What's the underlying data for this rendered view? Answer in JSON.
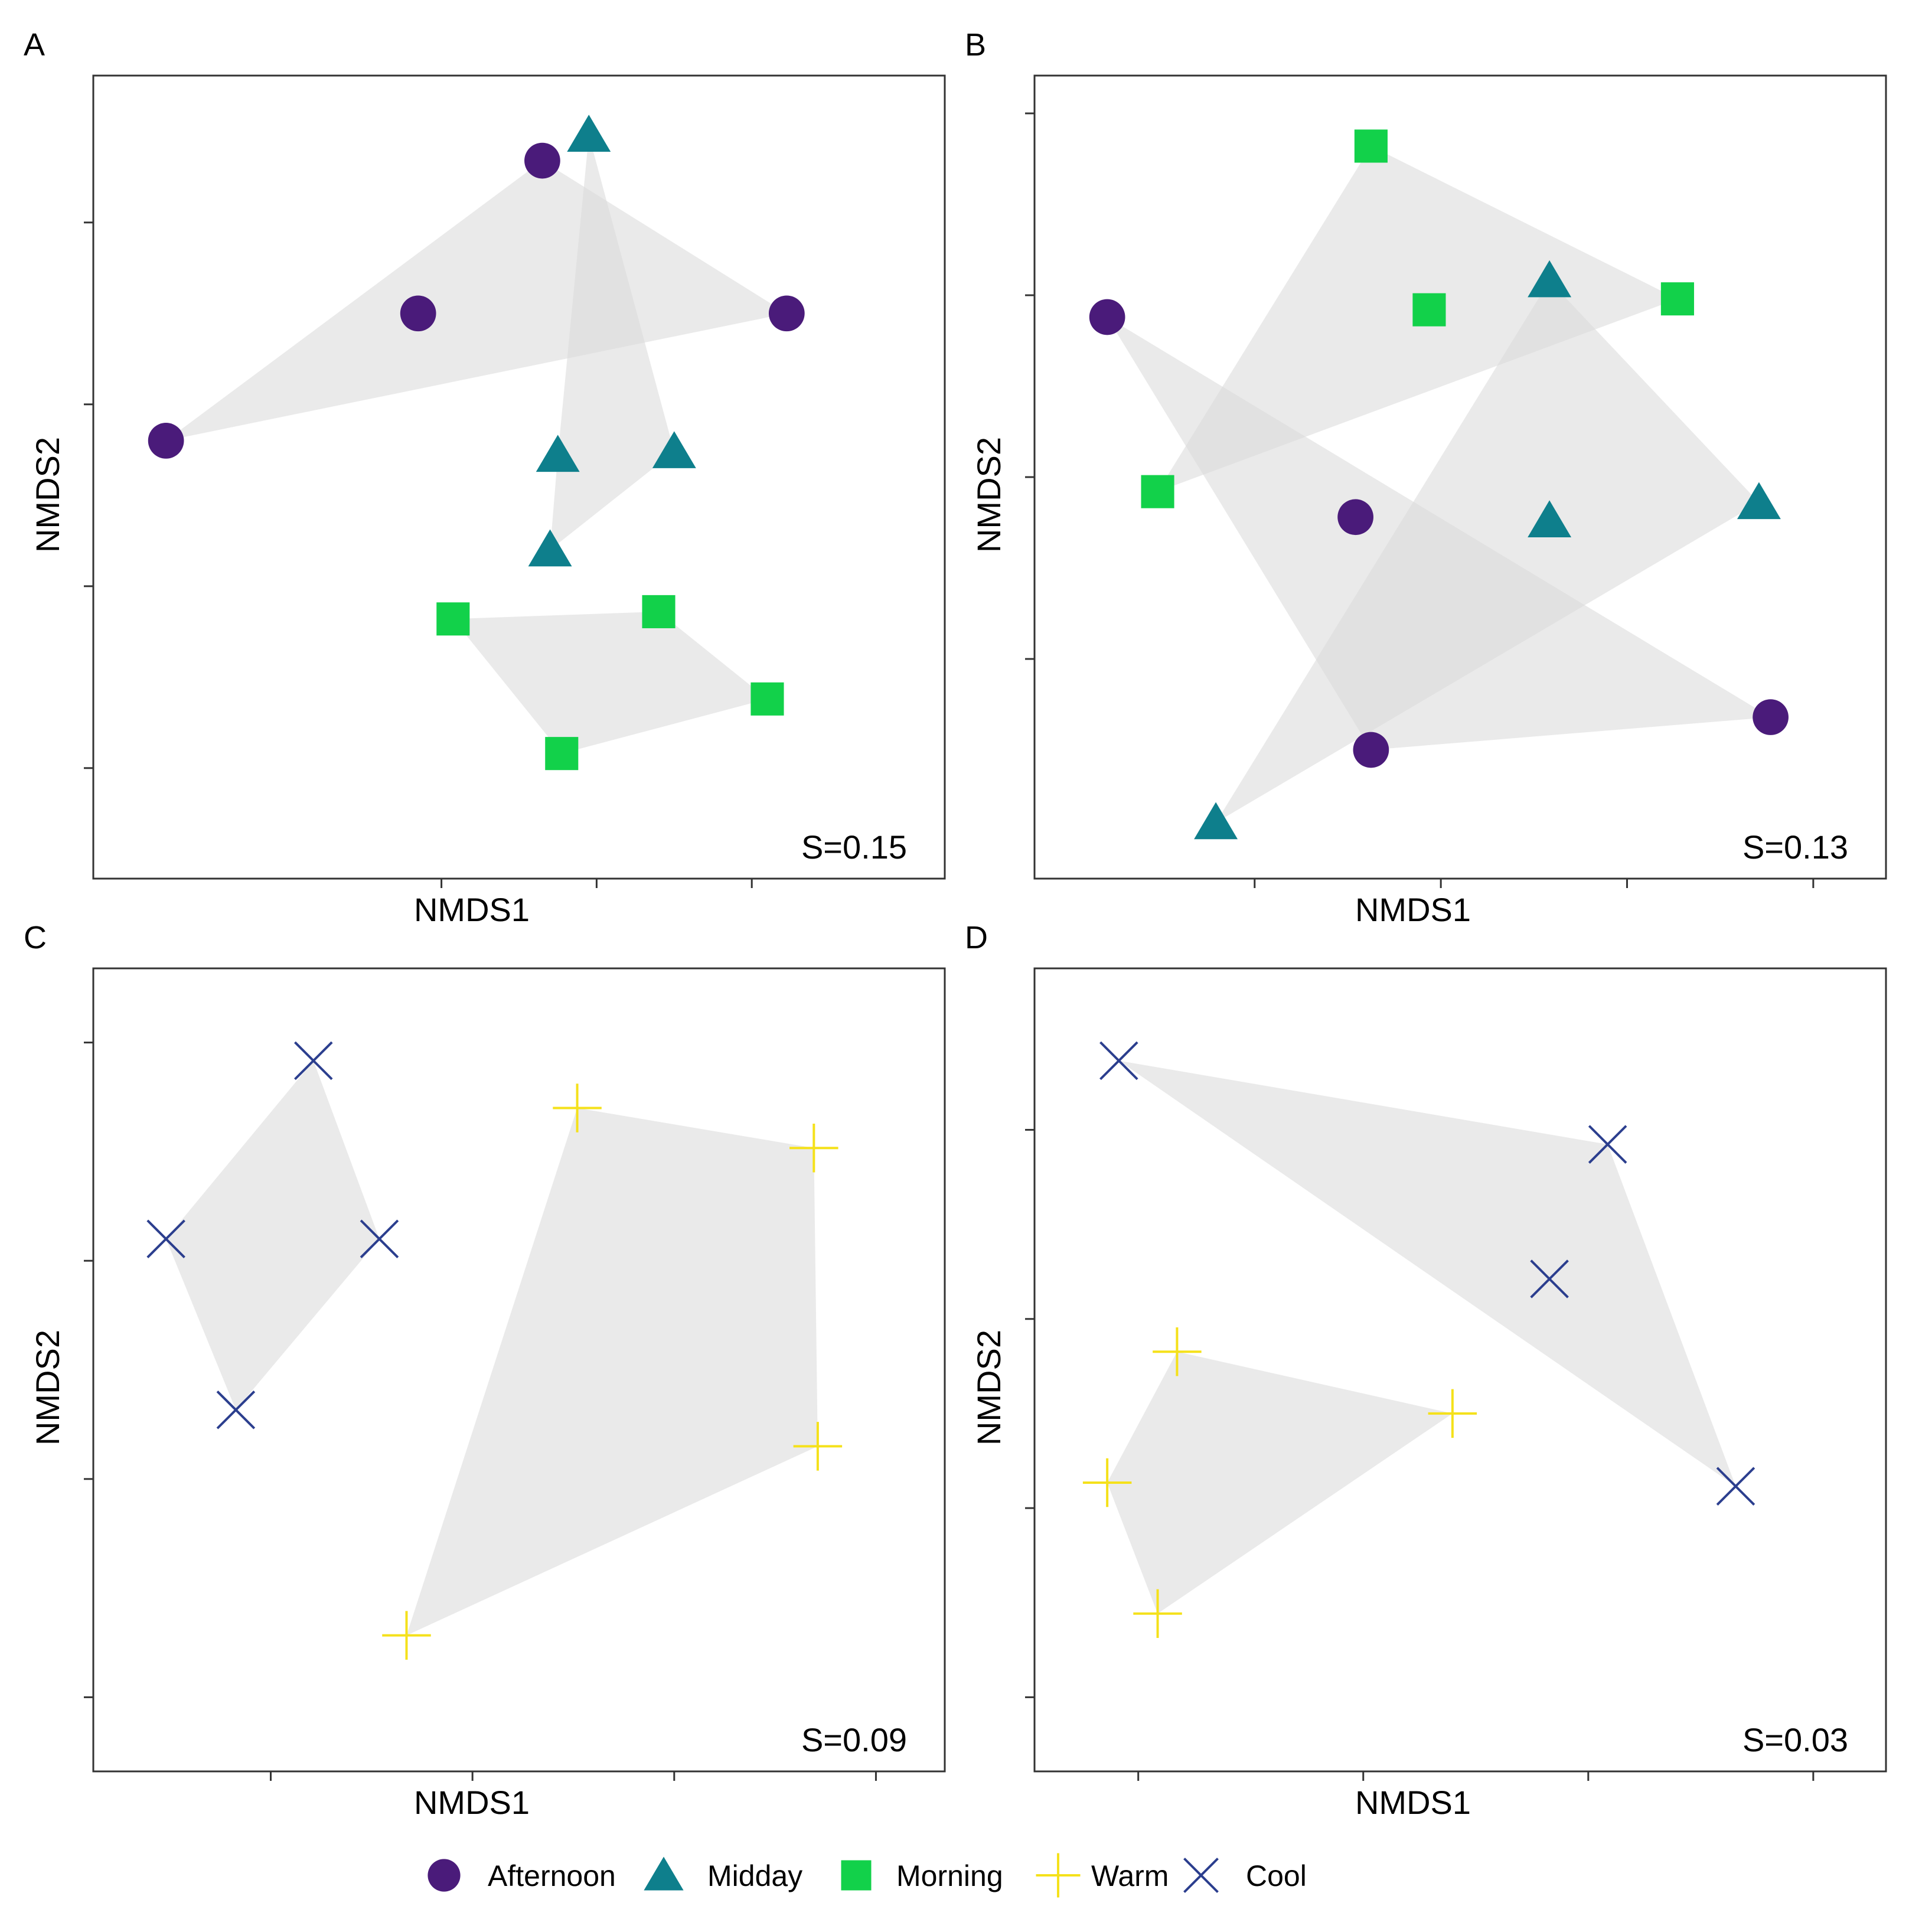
{
  "figure": {
    "groups": {
      "Afternoon": {
        "label": "Afternoon",
        "shape": "circle",
        "color": "#4a1b7a"
      },
      "Midday": {
        "label": "Midday",
        "shape": "triangle",
        "color": "#0e7f8c"
      },
      "Morning": {
        "label": "Morning",
        "shape": "square",
        "color": "#12d14a"
      },
      "Warm": {
        "label": "Warm",
        "shape": "plus",
        "color": "#f5e11a"
      },
      "Cool": {
        "label": "Cool",
        "shape": "cross",
        "color": "#2b3e8e"
      }
    },
    "hull_color": "#d8d8d8",
    "legend_order": [
      "Afternoon",
      "Midday",
      "Morning",
      "Warm",
      "Cool"
    ]
  },
  "chart_data": [
    {
      "id": "A",
      "type": "scatter",
      "panel_label": "A",
      "xlabel": "NMDS1",
      "ylabel": "NMDS2",
      "stress_label": "S=0.15",
      "xlim": [
        -1.0,
        1.0
      ],
      "ylim": [
        -1.0,
        1.0
      ],
      "xticks": [
        -0.2,
        0.2,
        0.6
      ],
      "yticks": [
        -0.8,
        -0.3,
        0.2,
        0.7
      ],
      "series": [
        {
          "group": "Afternoon",
          "points": [
            [
              -0.91,
              0.1
            ],
            [
              0.06,
              0.87
            ],
            [
              -0.26,
              0.45
            ],
            [
              0.69,
              0.45
            ]
          ]
        },
        {
          "group": "Midday",
          "points": [
            [
              0.18,
              0.94
            ],
            [
              0.1,
              0.06
            ],
            [
              0.4,
              0.07
            ],
            [
              0.08,
              -0.2
            ]
          ]
        },
        {
          "group": "Morning",
          "points": [
            [
              -0.17,
              -0.39
            ],
            [
              0.36,
              -0.37
            ],
            [
              0.64,
              -0.61
            ],
            [
              0.11,
              -0.76
            ]
          ]
        }
      ]
    },
    {
      "id": "B",
      "type": "scatter",
      "panel_label": "B",
      "xlabel": "NMDS1",
      "ylabel": "NMDS2",
      "stress_label": "S=0.13",
      "xlim": [
        -1.0,
        1.0
      ],
      "ylim": [
        -1.0,
        1.0
      ],
      "xticks": [
        -0.53,
        -0.05,
        0.43,
        0.91
      ],
      "yticks": [
        -0.5,
        0.0,
        0.5,
        1.0
      ],
      "series": [
        {
          "group": "Afternoon",
          "points": [
            [
              -0.91,
              0.44
            ],
            [
              -0.27,
              -0.11
            ],
            [
              -0.23,
              -0.75
            ],
            [
              0.8,
              -0.66
            ]
          ]
        },
        {
          "group": "Midday",
          "points": [
            [
              0.23,
              0.54
            ],
            [
              0.23,
              -0.12
            ],
            [
              0.77,
              -0.07
            ],
            [
              -0.63,
              -0.95
            ]
          ]
        },
        {
          "group": "Morning",
          "points": [
            [
              -0.23,
              0.91
            ],
            [
              -0.08,
              0.46
            ],
            [
              0.56,
              0.49
            ],
            [
              -0.78,
              -0.04
            ]
          ]
        }
      ]
    },
    {
      "id": "C",
      "type": "scatter",
      "panel_label": "C",
      "xlabel": "NMDS1",
      "ylabel": "NMDS2",
      "stress_label": "S=0.09",
      "xlim": [
        -1.0,
        1.0
      ],
      "ylim": [
        -1.0,
        1.0
      ],
      "xticks": [
        -0.64,
        -0.12,
        0.4,
        0.92
      ],
      "yticks": [
        -0.9,
        -0.3,
        0.3,
        0.9
      ],
      "series": [
        {
          "group": "Cool",
          "points": [
            [
              -0.53,
              0.85
            ],
            [
              -0.91,
              0.36
            ],
            [
              -0.36,
              0.36
            ],
            [
              -0.73,
              -0.11
            ]
          ]
        },
        {
          "group": "Warm",
          "points": [
            [
              0.15,
              0.72
            ],
            [
              0.76,
              0.61
            ],
            [
              0.77,
              -0.21
            ],
            [
              -0.29,
              -0.73
            ]
          ]
        }
      ]
    },
    {
      "id": "D",
      "type": "scatter",
      "panel_label": "D",
      "xlabel": "NMDS1",
      "ylabel": "NMDS2",
      "stress_label": "S=0.03",
      "xlim": [
        -1.0,
        1.0
      ],
      "ylim": [
        -1.0,
        1.0
      ],
      "xticks": [
        -0.83,
        -0.25,
        0.33,
        0.91
      ],
      "yticks": [
        -0.9,
        -0.38,
        0.14,
        0.66
      ],
      "series": [
        {
          "group": "Cool",
          "points": [
            [
              -0.88,
              0.85
            ],
            [
              0.38,
              0.62
            ],
            [
              0.23,
              0.25
            ],
            [
              0.71,
              -0.32
            ]
          ]
        },
        {
          "group": "Warm",
          "points": [
            [
              -0.73,
              0.05
            ],
            [
              -0.02,
              -0.12
            ],
            [
              -0.91,
              -0.31
            ],
            [
              -0.78,
              -0.67
            ]
          ]
        }
      ]
    }
  ]
}
